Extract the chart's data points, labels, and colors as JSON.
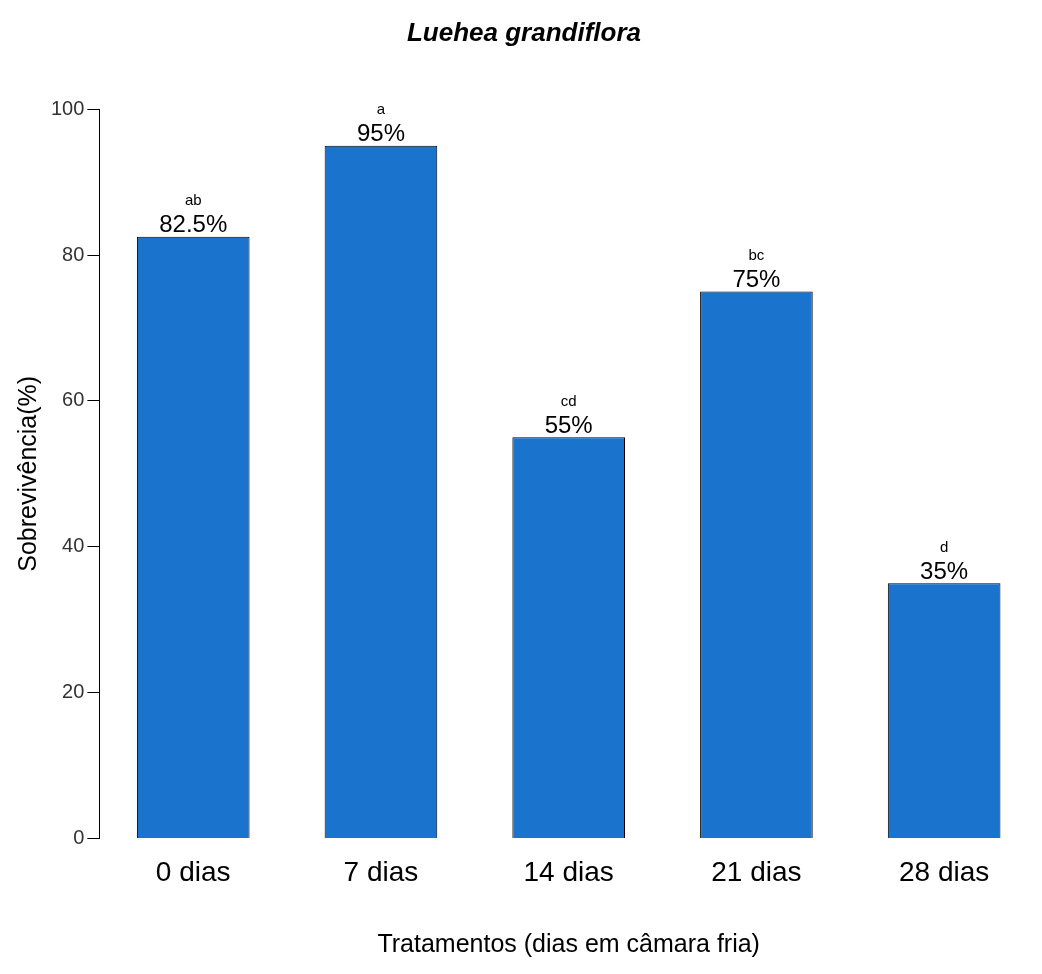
{
  "chart_data": {
    "type": "bar",
    "title": "Luehea grandiflora",
    "xlabel": "Tratamentos (dias em câmara fria)",
    "ylabel": "Sobrevivência(%)",
    "categories": [
      "0 dias",
      "7 dias",
      "14 dias",
      "21 dias",
      "28 dias"
    ],
    "values": [
      82.5,
      95,
      55,
      75,
      35
    ],
    "value_labels": [
      "82.5%",
      "95%",
      "55%",
      "75%",
      "35%"
    ],
    "color": "#1a73cc",
    "ylim": [
      0,
      100
    ],
    "yticks": [
      0,
      20,
      40,
      60,
      80,
      100
    ],
    "grid": false,
    "legend": false,
    "annotations": [
      {
        "text": "ab",
        "x": "0 dias",
        "y": 82.5
      },
      {
        "text": "a",
        "x": "7 dias",
        "y": 95
      },
      {
        "text": "cd",
        "x": "14 dias",
        "y": 55
      },
      {
        "text": "bc",
        "x": "21 dias",
        "y": 75
      },
      {
        "text": "d",
        "x": "28 dias",
        "y": 35
      }
    ]
  }
}
